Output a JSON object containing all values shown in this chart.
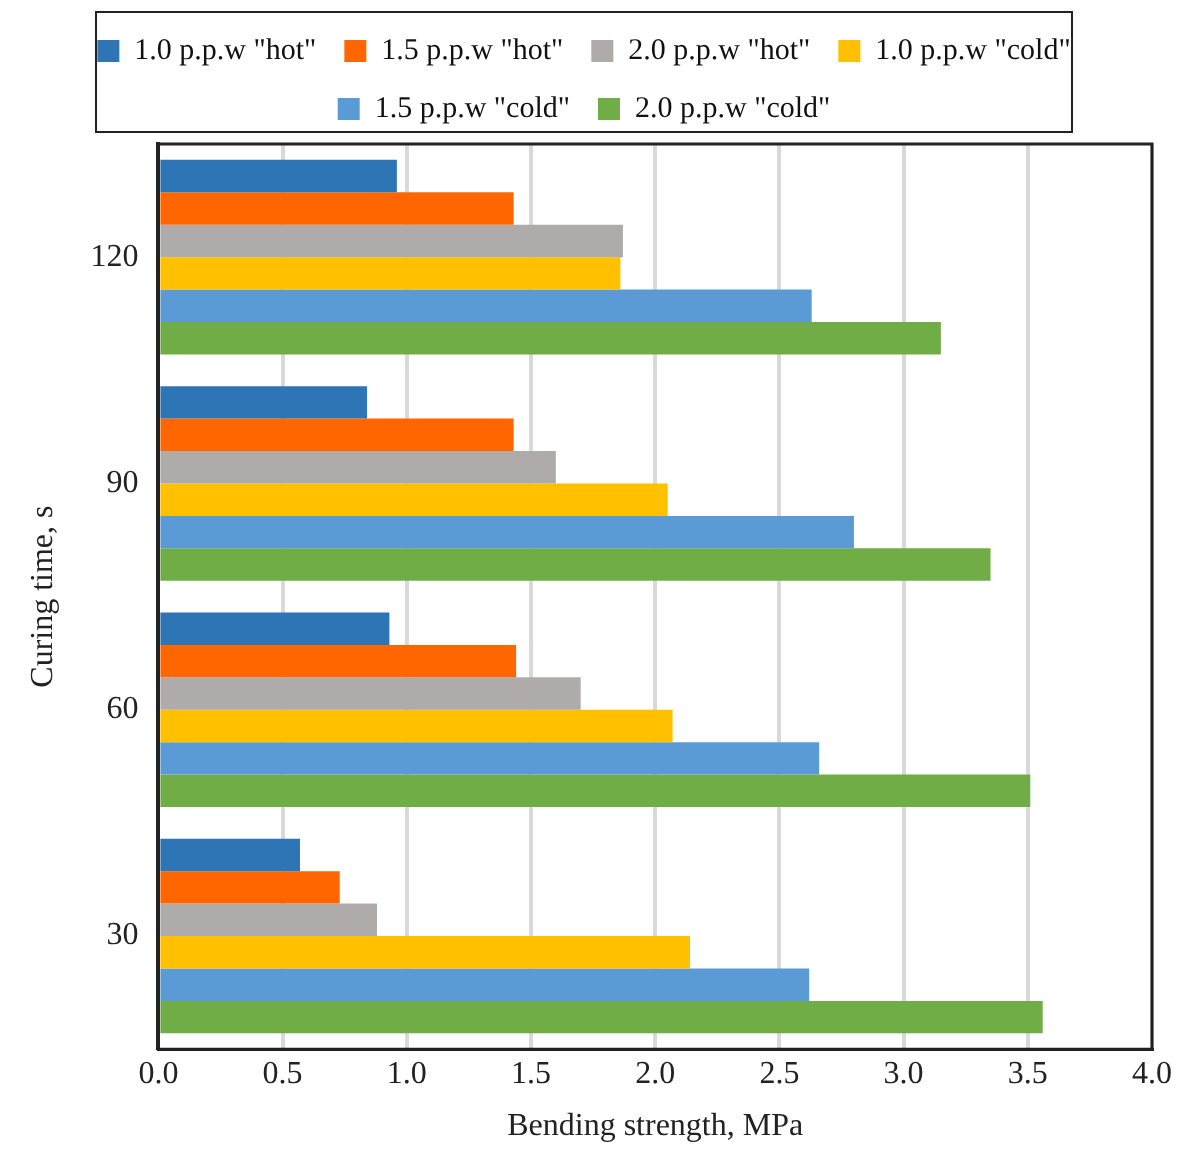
{
  "chart_data": {
    "type": "bar",
    "orientation": "horizontal",
    "xlabel": "Bending strength, MPa",
    "ylabel": "Curing time, s",
    "categories": [
      "120",
      "90",
      "60",
      "30"
    ],
    "series": [
      {
        "name": "1.0 p.p.w \"hot\"",
        "color": "#2e75b6",
        "values": [
          0.96,
          0.84,
          0.93,
          0.57
        ]
      },
      {
        "name": "1.5 p.p.w \"hot\"",
        "color": "#ff6600",
        "values": [
          1.43,
          1.43,
          1.44,
          0.73
        ]
      },
      {
        "name": "2.0 p.p.w \"hot\"",
        "color": "#afabab",
        "values": [
          1.87,
          1.6,
          1.7,
          0.88
        ]
      },
      {
        "name": "1.0 p.p.w \"cold\"",
        "color": "#ffc000",
        "values": [
          1.86,
          2.05,
          2.07,
          2.14
        ]
      },
      {
        "name": "1.5 p.p.w \"cold\"",
        "color": "#5b9bd5",
        "values": [
          2.63,
          2.8,
          2.66,
          2.62
        ]
      },
      {
        "name": "2.0 p.p.w \"cold\"",
        "color": "#70ad47",
        "values": [
          3.15,
          3.35,
          3.51,
          3.56
        ]
      }
    ],
    "xlim": [
      0,
      4
    ],
    "xticks": [
      {
        "value": 0,
        "label": "0.0"
      },
      {
        "value": 0.5,
        "label": "0.5"
      },
      {
        "value": 1,
        "label": "1.0"
      },
      {
        "value": 1.5,
        "label": "1.5"
      },
      {
        "value": 2,
        "label": "2.0"
      },
      {
        "value": 2.5,
        "label": "2.5"
      },
      {
        "value": 3,
        "label": "3.0"
      },
      {
        "value": 3.5,
        "label": "3.5"
      },
      {
        "value": 4,
        "label": "4.0"
      }
    ],
    "grid": "x",
    "legend": "top"
  }
}
